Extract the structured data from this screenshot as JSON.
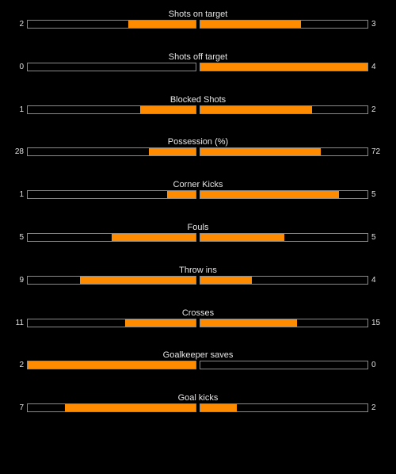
{
  "colors": {
    "background": "#000000",
    "bar_fill": "#ff8c00",
    "bar_border": "#8a8a8a",
    "text": "#e0e0e0"
  },
  "stats": [
    {
      "label": "Shots on target",
      "home": "2",
      "away": "3",
      "home_fill": 0.4,
      "away_fill": 0.6
    },
    {
      "label": "Shots off target",
      "home": "0",
      "away": "4",
      "home_fill": 0.0,
      "away_fill": 1.0
    },
    {
      "label": "Blocked Shots",
      "home": "1",
      "away": "2",
      "home_fill": 0.33,
      "away_fill": 0.67
    },
    {
      "label": "Possession (%)",
      "home": "28",
      "away": "72",
      "home_fill": 0.28,
      "away_fill": 0.72
    },
    {
      "label": "Corner Kicks",
      "home": "1",
      "away": "5",
      "home_fill": 0.17,
      "away_fill": 0.83
    },
    {
      "label": "Fouls",
      "home": "5",
      "away": "5",
      "home_fill": 0.5,
      "away_fill": 0.5
    },
    {
      "label": "Throw ins",
      "home": "9",
      "away": "4",
      "home_fill": 0.69,
      "away_fill": 0.31
    },
    {
      "label": "Crosses",
      "home": "11",
      "away": "15",
      "home_fill": 0.42,
      "away_fill": 0.58
    },
    {
      "label": "Goalkeeper saves",
      "home": "2",
      "away": "0",
      "home_fill": 1.0,
      "away_fill": 0.0
    },
    {
      "label": "Goal kicks",
      "home": "7",
      "away": "2",
      "home_fill": 0.78,
      "away_fill": 0.22
    }
  ]
}
